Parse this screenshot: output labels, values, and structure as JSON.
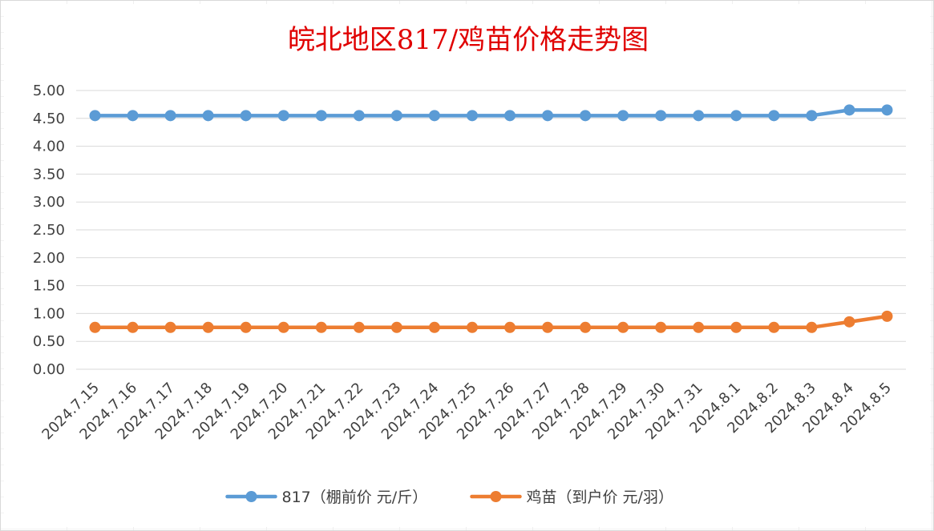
{
  "chart_data": {
    "type": "line",
    "title": "皖北地区817/鸡苗价格走势图",
    "xlabel": "",
    "ylabel": "",
    "ylim": [
      0,
      5
    ],
    "ytick_step": 0.5,
    "ytick_labels": [
      "0.00",
      "0.50",
      "1.00",
      "1.50",
      "2.00",
      "2.50",
      "3.00",
      "3.50",
      "4.00",
      "4.50",
      "5.00"
    ],
    "grid": true,
    "legend_position": "bottom",
    "categories": [
      "2024.7.15",
      "2024.7.16",
      "2024.7.17",
      "2024.7.18",
      "2024.7.19",
      "2024.7.20",
      "2024.7.21",
      "2024.7.22",
      "2024.7.23",
      "2024.7.24",
      "2024.7.25",
      "2024.7.26",
      "2024.7.27",
      "2024.7.28",
      "2024.7.29",
      "2024.7.30",
      "2024.7.31",
      "2024.8.1",
      "2024.8.2",
      "2024.8.3",
      "2024.8.4",
      "2024.8.5"
    ],
    "series": [
      {
        "name": "817（棚前价 元/斤）",
        "color": "#5b9bd5",
        "values": [
          4.55,
          4.55,
          4.55,
          4.55,
          4.55,
          4.55,
          4.55,
          4.55,
          4.55,
          4.55,
          4.55,
          4.55,
          4.55,
          4.55,
          4.55,
          4.55,
          4.55,
          4.55,
          4.55,
          4.55,
          4.65,
          4.65
        ]
      },
      {
        "name": "鸡苗（到户价 元/羽）",
        "color": "#ed7d31",
        "values": [
          0.75,
          0.75,
          0.75,
          0.75,
          0.75,
          0.75,
          0.75,
          0.75,
          0.75,
          0.75,
          0.75,
          0.75,
          0.75,
          0.75,
          0.75,
          0.75,
          0.75,
          0.75,
          0.75,
          0.75,
          0.85,
          0.95
        ]
      }
    ]
  }
}
